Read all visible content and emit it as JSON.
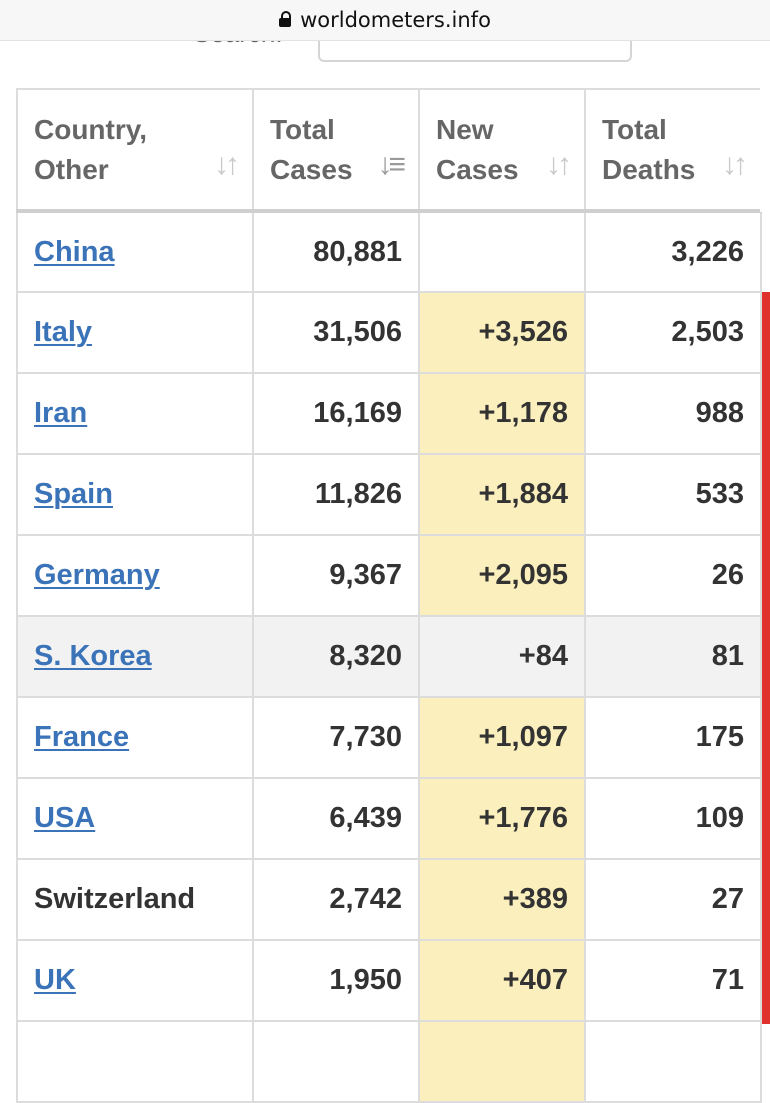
{
  "browser": {
    "url": "worldometers.info"
  },
  "search": {
    "label": "Search:"
  },
  "table": {
    "headers": [
      {
        "label": "Country, Other",
        "sort_icon": "sort-both-icon"
      },
      {
        "label": "Total Cases",
        "sort_icon": "sort-desc-icon"
      },
      {
        "label": "New Cases",
        "sort_icon": "sort-both-icon"
      },
      {
        "label": "Total Deaths",
        "sort_icon": "sort-both-icon"
      }
    ],
    "rows": [
      {
        "country": "China",
        "link": true,
        "total_cases": "80,881",
        "new_cases": "",
        "total_deaths": "3,226"
      },
      {
        "country": "Italy",
        "link": true,
        "total_cases": "31,506",
        "new_cases": "+3,526",
        "total_deaths": "2,503"
      },
      {
        "country": "Iran",
        "link": true,
        "total_cases": "16,169",
        "new_cases": "+1,178",
        "total_deaths": "988"
      },
      {
        "country": "Spain",
        "link": true,
        "total_cases": "11,826",
        "new_cases": "+1,884",
        "total_deaths": "533"
      },
      {
        "country": "Germany",
        "link": true,
        "total_cases": "9,367",
        "new_cases": "+2,095",
        "total_deaths": "26"
      },
      {
        "country": "S. Korea",
        "link": true,
        "total_cases": "8,320",
        "new_cases": "+84",
        "total_deaths": "81",
        "shaded": true
      },
      {
        "country": "France",
        "link": true,
        "total_cases": "7,730",
        "new_cases": "+1,097",
        "total_deaths": "175"
      },
      {
        "country": "USA",
        "link": true,
        "total_cases": "6,439",
        "new_cases": "+1,776",
        "total_deaths": "109"
      },
      {
        "country": "Switzerland",
        "link": false,
        "total_cases": "2,742",
        "new_cases": "+389",
        "total_deaths": "27"
      },
      {
        "country": "UK",
        "link": true,
        "total_cases": "1,950",
        "new_cases": "+407",
        "total_deaths": "71"
      },
      {
        "country": "",
        "link": false,
        "total_cases": "",
        "new_cases": "",
        "total_deaths": ""
      }
    ]
  },
  "colors": {
    "link": "#3b73b9",
    "new_cases_highlight": "#fbf0bd",
    "deaths_marker": "#e0322c",
    "header_text": "#666666"
  }
}
